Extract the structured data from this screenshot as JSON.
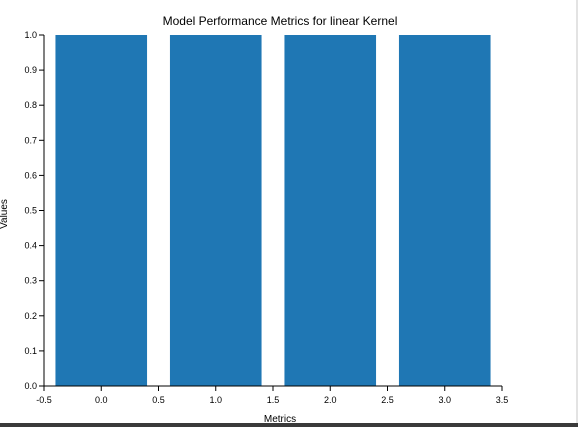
{
  "chart_data": {
    "type": "bar",
    "title": "Model Performance Metrics for linear Kernel",
    "xlabel": "Metrics",
    "ylabel": "Values",
    "x": [
      0,
      1,
      2,
      3
    ],
    "values": [
      1.0,
      1.0,
      1.0,
      1.0
    ],
    "bar_width": 0.8,
    "color": "#1f77b4",
    "xlim": [
      -0.5,
      3.5
    ],
    "ylim": [
      0,
      1
    ],
    "x_ticks": [
      -0.5,
      0,
      0.5,
      1,
      1.5,
      2,
      2.5,
      3,
      3.5
    ],
    "x_tick_labels": [
      "-0.5",
      "0.0",
      "0.5",
      "1.0",
      "1.5",
      "2.0",
      "2.5",
      "3.0",
      "3.5"
    ],
    "y_ticks": [
      0,
      0.1,
      0.2,
      0.3,
      0.4,
      0.5,
      0.6,
      0.7,
      0.8,
      0.9,
      1
    ],
    "y_tick_labels": [
      "0.0",
      "0.1",
      "0.2",
      "0.3",
      "0.4",
      "0.5",
      "0.6",
      "0.7",
      "0.8",
      "0.9",
      "1.0"
    ],
    "grid": false
  }
}
